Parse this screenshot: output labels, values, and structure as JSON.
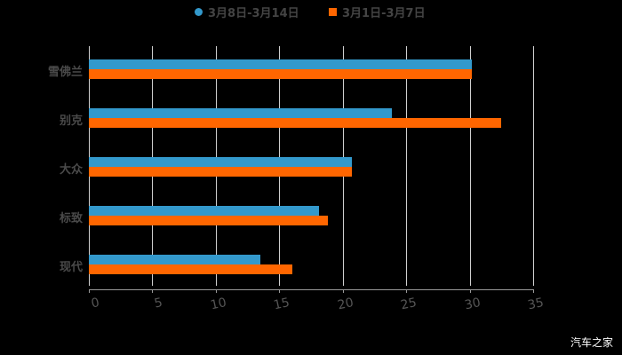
{
  "chart_data": {
    "type": "bar",
    "orientation": "horizontal",
    "title": "",
    "categories": [
      "雪佛兰",
      "别克",
      "大众",
      "标致",
      "现代"
    ],
    "series": [
      {
        "name": "3月8日-3月14日",
        "color": "#3399CC",
        "values": [
          30.2,
          23.9,
          20.7,
          18.1,
          13.5
        ]
      },
      {
        "name": "3月1日-3月7日",
        "color": "#FF6600",
        "values": [
          30.2,
          32.5,
          20.7,
          18.8,
          16.0
        ]
      }
    ],
    "xlabel": "",
    "ylabel": "",
    "xlim": [
      0,
      35
    ],
    "xticks": [
      "0",
      "5",
      "10",
      "15",
      "20",
      "25",
      "30",
      "35"
    ],
    "grid": true,
    "legend_position": "top"
  },
  "legend": [
    {
      "label": "3月8日-3月14日",
      "color": "#3399CC",
      "shape": "circle"
    },
    {
      "label": "3月1日-3月7日",
      "color": "#FF6600",
      "shape": "square"
    }
  ],
  "watermark": "汽车之家"
}
